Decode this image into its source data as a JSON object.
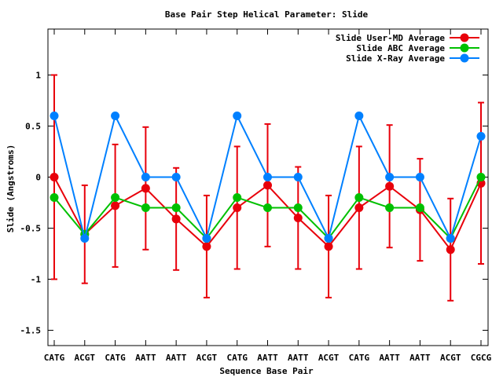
{
  "chart_data": {
    "type": "line",
    "title": "Base Pair Step Helical Parameter: Slide",
    "xlabel": "Sequence Base Pair",
    "ylabel": "Slide (Angstroms)",
    "categories": [
      "CATG",
      "ACGT",
      "CATG",
      "AATT",
      "AATT",
      "ACGT",
      "CATG",
      "AATT",
      "AATT",
      "ACGT",
      "CATG",
      "AATT",
      "AATT",
      "ACGT",
      "CGCG"
    ],
    "ylim": [
      -1.65,
      1.45
    ],
    "yticks": [
      -1.5,
      -1,
      -0.5,
      0,
      0.5,
      1
    ],
    "ytick_labels": [
      "-1.5",
      "-1",
      "-0.5",
      "0",
      "0.5",
      "1"
    ],
    "legend_position": "top-right",
    "grid": false,
    "series": [
      {
        "name": "Slide User-MD Average",
        "color": "#e8000b",
        "values": [
          0.0,
          -0.56,
          -0.28,
          -0.11,
          -0.41,
          -0.68,
          -0.3,
          -0.08,
          -0.4,
          -0.68,
          -0.3,
          -0.09,
          -0.32,
          -0.71,
          -0.06
        ],
        "error": [
          1.0,
          0.48,
          0.6,
          0.6,
          0.5,
          0.5,
          0.6,
          0.6,
          0.5,
          0.5,
          0.6,
          0.6,
          0.5,
          0.5,
          0.79
        ]
      },
      {
        "name": "Slide ABC Average",
        "color": "#00c000",
        "values": [
          -0.2,
          -0.56,
          -0.2,
          -0.3,
          -0.3,
          -0.6,
          -0.2,
          -0.3,
          -0.3,
          -0.6,
          -0.2,
          -0.3,
          -0.3,
          -0.6,
          0.0
        ]
      },
      {
        "name": "Slide X-Ray Average",
        "color": "#0080ff",
        "values": [
          0.6,
          -0.6,
          0.6,
          0.0,
          0.0,
          -0.6,
          0.6,
          0.0,
          0.0,
          -0.6,
          0.6,
          0.0,
          0.0,
          -0.6,
          0.4
        ]
      }
    ]
  }
}
